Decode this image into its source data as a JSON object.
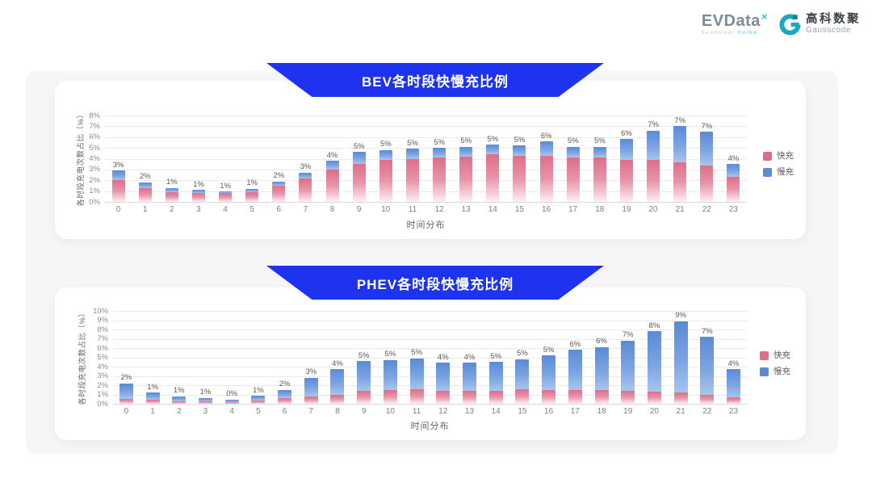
{
  "header": {
    "evdata_logo": {
      "name_ev": "EV",
      "name_data": "Data",
      "sup": "×",
      "subtext_left": "SHANGHAI",
      "subtext_right": "CHINA"
    },
    "gausscode_logo": {
      "cn": "高科数聚",
      "en": "Gausscode"
    }
  },
  "colors": {
    "banner_blue": "#1d33f0",
    "fast_pink": "#dd6e87",
    "slow_blue": "#5a8ad8",
    "board_bg": "#f6f6f8",
    "card_bg": "#ffffff"
  },
  "chart_data": [
    {
      "type": "bar",
      "stacked": true,
      "title": "BEV各时段快慢充比例",
      "xlabel": "时间分布",
      "ylabel": "各时段充电次数占比（%）",
      "ylim": [
        0,
        8
      ],
      "y_tick_labels": [
        "0%",
        "1%",
        "2%",
        "3%",
        "4%",
        "5%",
        "6%",
        "7%",
        "8%"
      ],
      "grid": true,
      "legend_position": "right",
      "legend": [
        "快充",
        "慢充"
      ],
      "categories": [
        "0",
        "1",
        "2",
        "3",
        "4",
        "5",
        "6",
        "7",
        "8",
        "9",
        "10",
        "11",
        "12",
        "13",
        "14",
        "15",
        "16",
        "17",
        "18",
        "19",
        "20",
        "21",
        "22",
        "23"
      ],
      "bar_labels": [
        "3%",
        "2%",
        "1%",
        "1%",
        "1%",
        "1%",
        "2%",
        "3%",
        "4%",
        "5%",
        "5%",
        "5%",
        "5%",
        "5%",
        "5%",
        "5%",
        "6%",
        "5%",
        "5%",
        "6%",
        "7%",
        "7%",
        "7%",
        "4%"
      ],
      "series": [
        {
          "name": "快充",
          "color": "#dd6e87",
          "values": [
            2.0,
            1.3,
            0.9,
            0.8,
            0.85,
            0.9,
            1.5,
            2.2,
            3.0,
            3.5,
            3.9,
            4.0,
            4.1,
            4.2,
            4.4,
            4.3,
            4.3,
            4.1,
            4.1,
            3.9,
            3.9,
            3.7,
            3.4,
            2.3
          ]
        },
        {
          "name": "慢充",
          "color": "#5a8ad8",
          "values": [
            0.9,
            0.5,
            0.4,
            0.3,
            0.1,
            0.3,
            0.4,
            0.5,
            0.8,
            1.1,
            0.9,
            0.9,
            0.9,
            0.9,
            0.9,
            0.9,
            1.3,
            1.0,
            1.0,
            1.9,
            2.7,
            3.3,
            3.1,
            1.2
          ]
        }
      ]
    },
    {
      "type": "bar",
      "stacked": true,
      "title": "PHEV各时段快慢充比例",
      "xlabel": "时间分布",
      "ylabel": "各时段充电次数占比（%）",
      "ylim": [
        0,
        10
      ],
      "y_tick_labels": [
        "0%",
        "1%",
        "2%",
        "3%",
        "4%",
        "5%",
        "6%",
        "7%",
        "8%",
        "9%",
        "10%"
      ],
      "grid": true,
      "legend_position": "right",
      "legend": [
        "快充",
        "慢充"
      ],
      "categories": [
        "0",
        "1",
        "2",
        "3",
        "4",
        "5",
        "6",
        "7",
        "8",
        "9",
        "10",
        "11",
        "12",
        "13",
        "14",
        "15",
        "16",
        "17",
        "18",
        "19",
        "20",
        "21",
        "22",
        "23"
      ],
      "bar_labels": [
        "2%",
        "1%",
        "1%",
        "1%",
        "0%",
        "1%",
        "2%",
        "3%",
        "4%",
        "5%",
        "5%",
        "5%",
        "4%",
        "4%",
        "5%",
        "5%",
        "5%",
        "6%",
        "6%",
        "7%",
        "8%",
        "9%",
        "7%",
        "4%"
      ],
      "series": [
        {
          "name": "快充",
          "color": "#dd6e87",
          "values": [
            0.5,
            0.4,
            0.3,
            0.3,
            0.2,
            0.35,
            0.6,
            0.8,
            1.0,
            1.4,
            1.5,
            1.6,
            1.4,
            1.4,
            1.4,
            1.6,
            1.5,
            1.5,
            1.5,
            1.4,
            1.3,
            1.2,
            1.0,
            0.7
          ]
        },
        {
          "name": "慢充",
          "color": "#5a8ad8",
          "values": [
            1.7,
            0.8,
            0.5,
            0.35,
            0.25,
            0.5,
            0.9,
            2.0,
            2.7,
            3.2,
            3.2,
            3.3,
            3.0,
            3.0,
            3.1,
            3.2,
            3.7,
            4.3,
            4.6,
            5.4,
            6.5,
            7.7,
            6.2,
            3.0
          ]
        }
      ]
    }
  ]
}
